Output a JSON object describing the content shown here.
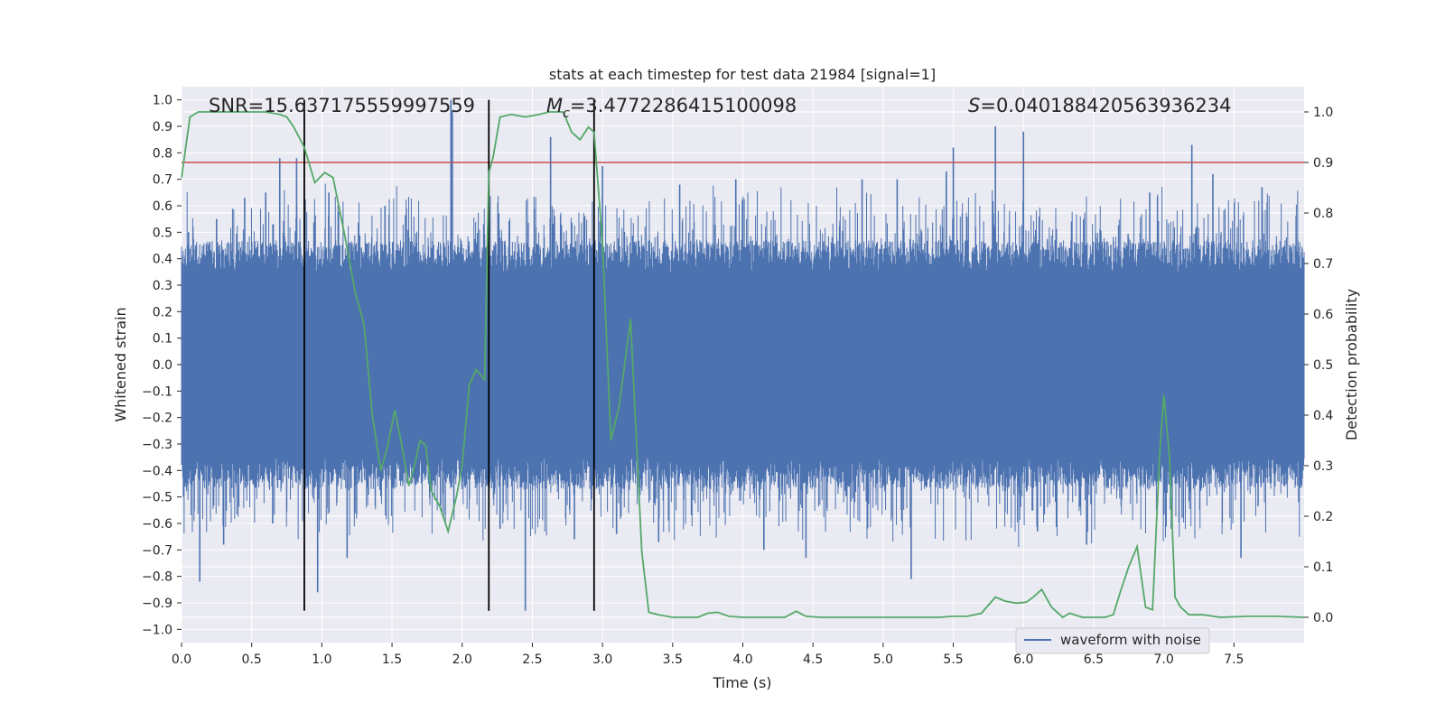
{
  "chart_data": {
    "type": "line",
    "title": "stats at each timestep for test data 21984 [signal=1]",
    "xlabel": "Time (s)",
    "ylabel_left": "Whitened strain",
    "ylabel_right": "Detection probability",
    "xlim": [
      0,
      8
    ],
    "ylim_left": [
      -1.05,
      1.05
    ],
    "ylim_right": [
      -0.05,
      1.05
    ],
    "xticks": [
      0.0,
      0.5,
      1.0,
      1.5,
      2.0,
      2.5,
      3.0,
      3.5,
      4.0,
      4.5,
      5.0,
      5.5,
      6.0,
      6.5,
      7.0,
      7.5
    ],
    "xtick_labels": [
      "0.0",
      "0.5",
      "1.0",
      "1.5",
      "2.0",
      "2.5",
      "3.0",
      "3.5",
      "4.0",
      "4.5",
      "5.0",
      "5.5",
      "6.0",
      "6.5",
      "7.0",
      "7.5"
    ],
    "yticks_left": [
      1.0,
      0.9,
      0.8,
      0.7,
      0.6,
      0.5,
      0.4,
      0.3,
      0.2,
      0.1,
      0.0,
      -0.1,
      -0.2,
      -0.3,
      -0.4,
      -0.5,
      -0.6,
      -0.7,
      -0.8,
      -0.9,
      -1.0
    ],
    "ytick_labels_left": [
      "1.0",
      "0.9",
      "0.8",
      "0.7",
      "0.6",
      "0.5",
      "0.4",
      "0.3",
      "0.2",
      "0.1",
      "0.0",
      "−0.1",
      "−0.2",
      "−0.3",
      "−0.4",
      "−0.5",
      "−0.6",
      "−0.7",
      "−0.8",
      "−0.9",
      "−1.0"
    ],
    "yticks_right": [
      1.0,
      0.9,
      0.8,
      0.7,
      0.6,
      0.5,
      0.4,
      0.3,
      0.2,
      0.1,
      0.0
    ],
    "ytick_labels_right": [
      "1.0",
      "0.9",
      "0.8",
      "0.7",
      "0.6",
      "0.5",
      "0.4",
      "0.3",
      "0.2",
      "0.1",
      "0.0"
    ],
    "annotations": {
      "snr": "SNR=15.637175559997559",
      "mc_prefix": "M",
      "mc_sub": "c",
      "mc_value": "=3.4772286415100098",
      "s_prefix": "S",
      "s_value": "=0.040188420563936234"
    },
    "threshold_right": 0.9,
    "vertical_lines_x": [
      0.875,
      2.19,
      2.94
    ],
    "vertical_lines_ylim_left": [
      -0.93,
      1.0
    ],
    "legend": {
      "label": "waveform with noise",
      "location": "lower right"
    },
    "waveform": {
      "name": "waveform with noise",
      "x_range": [
        0,
        8
      ],
      "core_amplitude": 0.35,
      "peaks": [
        {
          "x": 0.05,
          "y": 0.5
        },
        {
          "x": 0.13,
          "y": -0.82
        },
        {
          "x": 0.25,
          "y": 0.55
        },
        {
          "x": 0.3,
          "y": -0.68
        },
        {
          "x": 0.45,
          "y": 0.63
        },
        {
          "x": 0.6,
          "y": 0.65
        },
        {
          "x": 0.65,
          "y": -0.6
        },
        {
          "x": 0.7,
          "y": 0.78
        },
        {
          "x": 0.82,
          "y": 0.78
        },
        {
          "x": 0.97,
          "y": -0.86
        },
        {
          "x": 1.05,
          "y": 0.65
        },
        {
          "x": 1.18,
          "y": -0.73
        },
        {
          "x": 1.45,
          "y": 0.6
        },
        {
          "x": 1.92,
          "y": 1.0
        },
        {
          "x": 1.93,
          "y": 0.96
        },
        {
          "x": 2.27,
          "y": -0.62
        },
        {
          "x": 2.45,
          "y": -0.93
        },
        {
          "x": 2.63,
          "y": 0.86
        },
        {
          "x": 2.8,
          "y": -0.66
        },
        {
          "x": 3.0,
          "y": 0.75
        },
        {
          "x": 3.1,
          "y": -0.64
        },
        {
          "x": 3.4,
          "y": -0.67
        },
        {
          "x": 3.55,
          "y": 0.68
        },
        {
          "x": 3.95,
          "y": 0.7
        },
        {
          "x": 4.15,
          "y": -0.7
        },
        {
          "x": 4.45,
          "y": -0.73
        },
        {
          "x": 4.85,
          "y": 0.7
        },
        {
          "x": 5.1,
          "y": 0.7
        },
        {
          "x": 5.2,
          "y": -0.81
        },
        {
          "x": 5.45,
          "y": 0.73
        },
        {
          "x": 5.5,
          "y": 0.82
        },
        {
          "x": 5.8,
          "y": 0.9
        },
        {
          "x": 6.0,
          "y": 0.88
        },
        {
          "x": 6.1,
          "y": -0.63
        },
        {
          "x": 6.45,
          "y": -0.68
        },
        {
          "x": 6.9,
          "y": 0.65
        },
        {
          "x": 7.2,
          "y": 0.83
        },
        {
          "x": 7.35,
          "y": 0.72
        },
        {
          "x": 7.55,
          "y": -0.73
        },
        {
          "x": 7.7,
          "y": 0.67
        }
      ]
    },
    "detection_probability": {
      "name": "detection probability",
      "x": [
        0.0,
        0.06,
        0.12,
        0.2,
        0.3,
        0.4,
        0.5,
        0.6,
        0.7,
        0.75,
        0.8,
        0.875,
        0.95,
        1.02,
        1.08,
        1.16,
        1.24,
        1.3,
        1.36,
        1.42,
        1.47,
        1.52,
        1.57,
        1.62,
        1.66,
        1.7,
        1.74,
        1.78,
        1.84,
        1.9,
        1.96,
        2.0,
        2.05,
        2.1,
        2.16,
        2.19,
        2.22,
        2.27,
        2.35,
        2.45,
        2.55,
        2.62,
        2.66,
        2.72,
        2.78,
        2.84,
        2.9,
        2.94,
        3.0,
        3.06,
        3.12,
        3.2,
        3.28,
        3.33,
        3.4,
        3.5,
        3.6,
        3.68,
        3.75,
        3.82,
        3.9,
        4.0,
        4.1,
        4.2,
        4.3,
        4.38,
        4.45,
        4.55,
        4.7,
        4.85,
        5.0,
        5.15,
        5.3,
        5.4,
        5.5,
        5.6,
        5.7,
        5.8,
        5.87,
        5.95,
        6.02,
        6.07,
        6.13,
        6.2,
        6.28,
        6.33,
        6.42,
        6.5,
        6.58,
        6.64,
        6.69,
        6.75,
        6.81,
        6.87,
        6.92,
        6.97,
        7.0,
        7.04,
        7.08,
        7.12,
        7.18,
        7.28,
        7.4,
        7.6,
        7.8,
        8.0
      ],
      "y": [
        0.87,
        0.99,
        1.0,
        1.0,
        1.0,
        1.0,
        1.0,
        1.0,
        0.995,
        0.99,
        0.97,
        0.93,
        0.86,
        0.88,
        0.87,
        0.76,
        0.64,
        0.58,
        0.4,
        0.29,
        0.34,
        0.41,
        0.34,
        0.26,
        0.3,
        0.35,
        0.34,
        0.25,
        0.22,
        0.17,
        0.24,
        0.3,
        0.46,
        0.49,
        0.47,
        0.88,
        0.91,
        0.99,
        0.995,
        0.99,
        0.995,
        1.0,
        1.0,
        1.0,
        0.96,
        0.945,
        0.97,
        0.96,
        0.74,
        0.35,
        0.42,
        0.59,
        0.13,
        0.01,
        0.005,
        0.0,
        0.0,
        0.0,
        0.008,
        0.01,
        0.002,
        0.0,
        0.0,
        0.0,
        0.0,
        0.012,
        0.002,
        0.0,
        0.0,
        0.0,
        0.0,
        0.0,
        0.0,
        0.0,
        0.002,
        0.002,
        0.008,
        0.04,
        0.032,
        0.028,
        0.03,
        0.04,
        0.055,
        0.02,
        0.0,
        0.008,
        0.0,
        0.0,
        0.0,
        0.005,
        0.05,
        0.1,
        0.14,
        0.02,
        0.015,
        0.32,
        0.44,
        0.32,
        0.04,
        0.02,
        0.005,
        0.005,
        0.0,
        0.002,
        0.002,
        0.0
      ]
    },
    "colors": {
      "waveform": "#4c72b0",
      "probability": "#55a868",
      "threshold": "#c44e52",
      "vlines": "#000000",
      "axes_face": "#eaeaf2",
      "grid": "#ffffff"
    }
  }
}
